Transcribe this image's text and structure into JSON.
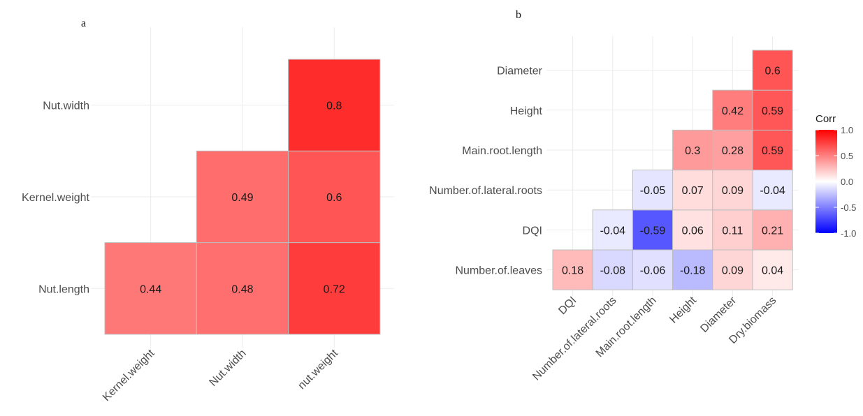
{
  "colors": {
    "low": "#0000FF",
    "mid": "#FFFFFF",
    "high": "#FF0000",
    "cell_border": "#bdbdbd"
  },
  "chart_data": [
    {
      "type": "heatmap",
      "panel_label": "a",
      "x_categories": [
        "Kernel.weight",
        "Nut.width",
        "nut.weight"
      ],
      "y_categories": [
        "Nut.length",
        "Kernel.weight",
        "Nut.width"
      ],
      "cells": [
        {
          "x": "Kernel.weight",
          "y": "Nut.length",
          "value": 0.44,
          "label": "0.44"
        },
        {
          "x": "Nut.width",
          "y": "Nut.length",
          "value": 0.48,
          "label": "0.48"
        },
        {
          "x": "nut.weight",
          "y": "Nut.length",
          "value": 0.72,
          "label": "0.72"
        },
        {
          "x": "Nut.width",
          "y": "Kernel.weight",
          "value": 0.49,
          "label": "0.49"
        },
        {
          "x": "nut.weight",
          "y": "Kernel.weight",
          "value": 0.6,
          "label": "0.6"
        },
        {
          "x": "nut.weight",
          "y": "Nut.width",
          "value": 0.8,
          "label": "0.8"
        }
      ],
      "value_range": [
        -1,
        1
      ],
      "grid": true
    },
    {
      "type": "heatmap",
      "panel_label": "b",
      "x_categories": [
        "DQI",
        "Number.of.lateral.roots",
        "Main.root.length",
        "Height",
        "Diameter",
        "Dry.biomass"
      ],
      "y_categories": [
        "Number.of.leaves",
        "DQI",
        "Number.of.lateral.roots",
        "Main.root.length",
        "Height",
        "Diameter"
      ],
      "cells": [
        {
          "x": "DQI",
          "y": "Number.of.leaves",
          "value": 0.18,
          "label": "0.18"
        },
        {
          "x": "Number.of.lateral.roots",
          "y": "Number.of.leaves",
          "value": -0.08,
          "label": "-0.08"
        },
        {
          "x": "Main.root.length",
          "y": "Number.of.leaves",
          "value": -0.06,
          "label": "-0.06"
        },
        {
          "x": "Height",
          "y": "Number.of.leaves",
          "value": -0.18,
          "label": "-0.18"
        },
        {
          "x": "Diameter",
          "y": "Number.of.leaves",
          "value": 0.09,
          "label": "0.09"
        },
        {
          "x": "Dry.biomass",
          "y": "Number.of.leaves",
          "value": 0.04,
          "label": "0.04"
        },
        {
          "x": "Number.of.lateral.roots",
          "y": "DQI",
          "value": -0.04,
          "label": "-0.04"
        },
        {
          "x": "Main.root.length",
          "y": "DQI",
          "value": -0.59,
          "label": "-0.59"
        },
        {
          "x": "Height",
          "y": "DQI",
          "value": 0.06,
          "label": "0.06"
        },
        {
          "x": "Diameter",
          "y": "DQI",
          "value": 0.11,
          "label": "0.11"
        },
        {
          "x": "Dry.biomass",
          "y": "DQI",
          "value": 0.21,
          "label": "0.21"
        },
        {
          "x": "Main.root.length",
          "y": "Number.of.lateral.roots",
          "value": -0.05,
          "label": "-0.05"
        },
        {
          "x": "Height",
          "y": "Number.of.lateral.roots",
          "value": 0.07,
          "label": "0.07"
        },
        {
          "x": "Diameter",
          "y": "Number.of.lateral.roots",
          "value": 0.09,
          "label": "0.09"
        },
        {
          "x": "Dry.biomass",
          "y": "Number.of.lateral.roots",
          "value": -0.04,
          "label": "-0.04"
        },
        {
          "x": "Height",
          "y": "Main.root.length",
          "value": 0.3,
          "label": "0.3"
        },
        {
          "x": "Diameter",
          "y": "Main.root.length",
          "value": 0.28,
          "label": "0.28"
        },
        {
          "x": "Dry.biomass",
          "y": "Main.root.length",
          "value": 0.59,
          "label": "0.59"
        },
        {
          "x": "Diameter",
          "y": "Height",
          "value": 0.42,
          "label": "0.42"
        },
        {
          "x": "Dry.biomass",
          "y": "Height",
          "value": 0.59,
          "label": "0.59"
        },
        {
          "x": "Dry.biomass",
          "y": "Diameter",
          "value": 0.6,
          "label": "0.6"
        }
      ],
      "value_range": [
        -1,
        1
      ],
      "grid": true,
      "legend": {
        "title": "Corr",
        "placement": "right",
        "breaks": [
          1.0,
          0.5,
          0.0,
          -0.5,
          -1.0
        ],
        "tick_labels": [
          "1.0",
          "0.5",
          "0.0",
          "-0.5",
          "-1.0"
        ]
      }
    }
  ]
}
